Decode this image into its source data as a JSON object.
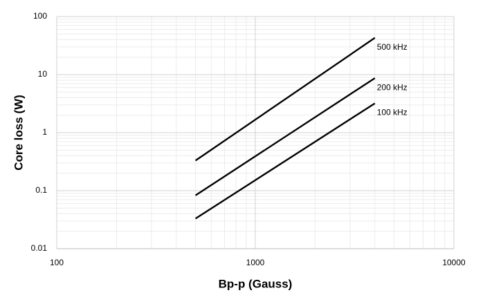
{
  "chart_data": {
    "type": "line",
    "xlabel": "Bp-p (Gauss)",
    "ylabel": "Core loss (W)",
    "x": [
      500,
      4000
    ],
    "series": [
      {
        "name": "500 kHz",
        "color": "#000000",
        "values": [
          0.33,
          43
        ]
      },
      {
        "name": "200 kHz",
        "color": "#000000",
        "values": [
          0.083,
          8.7
        ]
      },
      {
        "name": "100 kHz",
        "color": "#000000",
        "values": [
          0.033,
          3.2
        ]
      }
    ],
    "xlim": [
      100,
      10000
    ],
    "xticks": [
      100,
      1000,
      10000
    ],
    "ylim": [
      0.01,
      100
    ],
    "yticks": [
      0.01,
      0.1,
      1,
      10,
      100
    ],
    "xscale": "log",
    "yscale": "log",
    "grid": true
  }
}
